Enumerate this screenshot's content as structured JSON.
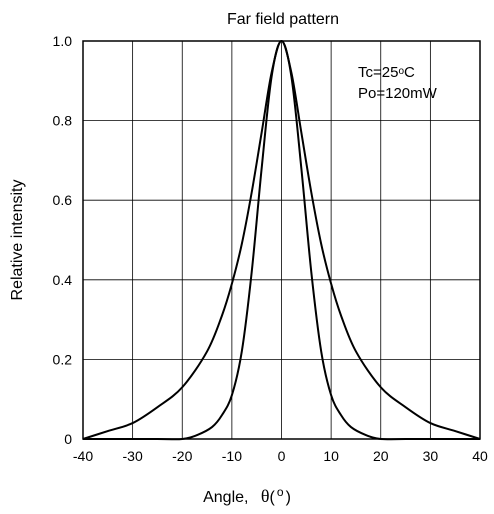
{
  "chart_data": {
    "type": "line",
    "title": "Far field pattern",
    "ylabel": "Relative intensity",
    "xlabel": {
      "text": "Angle,",
      "symbol": "θ",
      "unit_open": "(",
      "unit": "o",
      "unit_close": ")"
    },
    "xlim": [
      -40,
      40
    ],
    "ylim": [
      0,
      1.0
    ],
    "x_ticks": [
      -40,
      -30,
      -20,
      -10,
      0,
      10,
      20,
      30,
      40
    ],
    "x_tick_labels": [
      "-40",
      "-30",
      "-20",
      "-10",
      "0",
      "10",
      "20",
      "30",
      "40"
    ],
    "y_ticks": [
      0,
      0.2,
      0.4,
      0.6,
      0.8,
      1.0
    ],
    "y_tick_labels": [
      "0",
      "0.2",
      "0.4",
      "0.6",
      "0.8",
      "1.0"
    ],
    "grid": true,
    "annotation": {
      "line1_prefix": "Tc=25",
      "line1_sup": "o",
      "line1_suffix": "C",
      "line2": "Po=120mW"
    },
    "series": [
      {
        "x": [
          -40,
          -35,
          -30,
          -25,
          -20,
          -15,
          -12,
          -10,
          -8,
          -6,
          -4,
          -2,
          0,
          2,
          4,
          6,
          8,
          10,
          12,
          15,
          20,
          25,
          30,
          35,
          40
        ],
        "y": [
          0.0,
          0.02,
          0.04,
          0.08,
          0.13,
          0.22,
          0.31,
          0.39,
          0.49,
          0.62,
          0.77,
          0.92,
          1.0,
          0.92,
          0.77,
          0.62,
          0.49,
          0.39,
          0.31,
          0.22,
          0.13,
          0.08,
          0.04,
          0.02,
          0.0
        ]
      },
      {
        "x": [
          -40,
          -25,
          -20,
          -17,
          -14,
          -12,
          -10,
          -8,
          -6,
          -4,
          -2,
          0,
          2,
          4,
          6,
          8,
          10,
          12,
          14,
          17,
          20,
          25,
          40
        ],
        "y": [
          0.0,
          0.0,
          0.0,
          0.01,
          0.03,
          0.06,
          0.11,
          0.22,
          0.42,
          0.68,
          0.91,
          1.0,
          0.91,
          0.68,
          0.42,
          0.22,
          0.11,
          0.06,
          0.03,
          0.01,
          0.0,
          0.0,
          0.0
        ]
      }
    ]
  }
}
